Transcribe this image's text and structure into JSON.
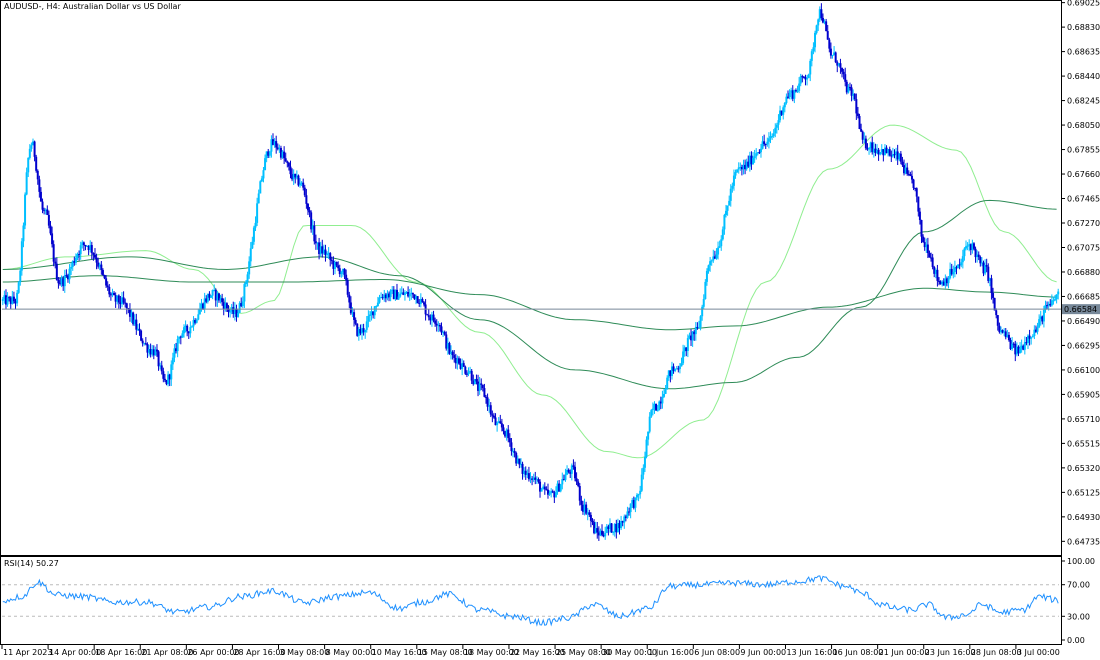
{
  "window": {
    "symbol_title": "AUDUSD-, H4:  Australian Dollar vs US Dollar"
  },
  "indicator": {
    "title": "RSI(14) 50.27",
    "levels": [
      100,
      70,
      30,
      0
    ],
    "level_labels": [
      "100.00",
      "70.00",
      "30.00",
      "0.00"
    ]
  },
  "price_axis": {
    "ticks": [
      "0.69025",
      "0.68830",
      "0.68635",
      "0.68440",
      "0.68245",
      "0.68050",
      "0.67855",
      "0.67660",
      "0.67465",
      "0.67270",
      "0.67075",
      "0.66880",
      "0.66685",
      "0.66490",
      "0.66295",
      "0.66100",
      "0.65905",
      "0.65710",
      "0.65515",
      "0.65320",
      "0.65125",
      "0.64930",
      "0.64735"
    ],
    "current_price": "0.66584"
  },
  "time_axis": {
    "ticks": [
      "11 Apr 2023",
      "14 Apr 00:00",
      "18 Apr 16:00",
      "21 Apr 08:00",
      "26 Apr 00:00",
      "28 Apr 16:00",
      "3 May 08:00",
      "8 May 00:00",
      "10 May 16:00",
      "15 May 08:00",
      "18 May 00:00",
      "22 May 16:00",
      "25 May 08:00",
      "30 May 00:00",
      "1 Jun 16:00",
      "6 Jun 08:00",
      "9 Jun 00:00",
      "13 Jun 16:00",
      "16 Jun 08:00",
      "21 Jun 00:00",
      "23 Jun 16:00",
      "28 Jun 08:00",
      "3 Jul 00:00"
    ]
  },
  "colors": {
    "bull": "#00bfff",
    "bear": "#0000cd",
    "ma_fast": "#90ee90",
    "ma_slow": "#2e8b57",
    "rsi": "#1e90ff",
    "price_line": "#778899"
  },
  "chart_data": {
    "type": "candlestick",
    "symbol": "AUDUSD-",
    "timeframe": "H4",
    "ylim": [
      0.6465,
      0.6903
    ],
    "close_path_anchors": [
      [
        0,
        0.6665
      ],
      [
        8,
        0.6665
      ],
      [
        18,
        0.679
      ],
      [
        26,
        0.6735
      ],
      [
        36,
        0.668
      ],
      [
        52,
        0.671
      ],
      [
        72,
        0.6665
      ],
      [
        95,
        0.6625
      ],
      [
        102,
        0.66
      ],
      [
        113,
        0.664
      ],
      [
        132,
        0.667
      ],
      [
        146,
        0.6655
      ],
      [
        170,
        0.679
      ],
      [
        186,
        0.676
      ],
      [
        200,
        0.6705
      ],
      [
        212,
        0.669
      ],
      [
        224,
        0.664
      ],
      [
        240,
        0.667
      ],
      [
        258,
        0.667
      ],
      [
        272,
        0.665
      ],
      [
        284,
        0.662
      ],
      [
        292,
        0.661
      ],
      [
        300,
        0.6595
      ],
      [
        312,
        0.6565
      ],
      [
        330,
        0.6527
      ],
      [
        344,
        0.651
      ],
      [
        358,
        0.653
      ],
      [
        366,
        0.65
      ],
      [
        374,
        0.648
      ],
      [
        386,
        0.6485
      ],
      [
        398,
        0.6505
      ],
      [
        410,
        0.658
      ],
      [
        422,
        0.661
      ],
      [
        436,
        0.664
      ],
      [
        446,
        0.67
      ],
      [
        464,
        0.677
      ],
      [
        480,
        0.679
      ],
      [
        496,
        0.683
      ],
      [
        506,
        0.6845
      ],
      [
        514,
        0.6895
      ],
      [
        522,
        0.686
      ],
      [
        534,
        0.683
      ],
      [
        542,
        0.679
      ],
      [
        552,
        0.6785
      ],
      [
        562,
        0.678
      ],
      [
        572,
        0.676
      ],
      [
        580,
        0.671
      ],
      [
        590,
        0.668
      ],
      [
        600,
        0.669
      ],
      [
        608,
        0.671
      ],
      [
        618,
        0.669
      ],
      [
        628,
        0.664
      ],
      [
        638,
        0.6625
      ],
      [
        648,
        0.664
      ],
      [
        658,
        0.666
      ],
      [
        664,
        0.667
      ]
    ],
    "sma_fast_anchors": [
      [
        0,
        0.669
      ],
      [
        40,
        0.67
      ],
      [
        90,
        0.6705
      ],
      [
        120,
        0.669
      ],
      [
        150,
        0.6655
      ],
      [
        170,
        0.6665
      ],
      [
        190,
        0.6725
      ],
      [
        220,
        0.6725
      ],
      [
        260,
        0.668
      ],
      [
        300,
        0.664
      ],
      [
        340,
        0.659
      ],
      [
        380,
        0.6545
      ],
      [
        400,
        0.654
      ],
      [
        440,
        0.657
      ],
      [
        480,
        0.668
      ],
      [
        520,
        0.677
      ],
      [
        560,
        0.6805
      ],
      [
        600,
        0.6785
      ],
      [
        630,
        0.672
      ],
      [
        664,
        0.668
      ]
    ],
    "sma_slow_anchors": [
      [
        0,
        0.668
      ],
      [
        60,
        0.6685
      ],
      [
        120,
        0.668
      ],
      [
        180,
        0.668
      ],
      [
        240,
        0.6682
      ],
      [
        300,
        0.667
      ],
      [
        360,
        0.665
      ],
      [
        420,
        0.6642
      ],
      [
        460,
        0.6645
      ],
      [
        520,
        0.666
      ],
      [
        580,
        0.6675
      ],
      [
        620,
        0.6672
      ],
      [
        664,
        0.6668
      ]
    ],
    "sma_long_anchors": [
      [
        0,
        0.669
      ],
      [
        80,
        0.67
      ],
      [
        140,
        0.669
      ],
      [
        200,
        0.67
      ],
      [
        250,
        0.6685
      ],
      [
        300,
        0.665
      ],
      [
        360,
        0.661
      ],
      [
        420,
        0.6595
      ],
      [
        460,
        0.66
      ],
      [
        500,
        0.662
      ],
      [
        540,
        0.666
      ],
      [
        580,
        0.672
      ],
      [
        620,
        0.6745
      ],
      [
        664,
        0.6738
      ]
    ],
    "rsi_anchors": [
      [
        0,
        50
      ],
      [
        12,
        55
      ],
      [
        22,
        73
      ],
      [
        34,
        57
      ],
      [
        50,
        55
      ],
      [
        70,
        48
      ],
      [
        90,
        48
      ],
      [
        110,
        35
      ],
      [
        130,
        42
      ],
      [
        150,
        55
      ],
      [
        170,
        62
      ],
      [
        190,
        47
      ],
      [
        210,
        55
      ],
      [
        230,
        60
      ],
      [
        250,
        40
      ],
      [
        264,
        48
      ],
      [
        280,
        58
      ],
      [
        300,
        38
      ],
      [
        320,
        30
      ],
      [
        340,
        22
      ],
      [
        356,
        28
      ],
      [
        372,
        45
      ],
      [
        388,
        30
      ],
      [
        406,
        40
      ],
      [
        420,
        68
      ],
      [
        440,
        70
      ],
      [
        460,
        72
      ],
      [
        480,
        70
      ],
      [
        500,
        74
      ],
      [
        514,
        78
      ],
      [
        530,
        68
      ],
      [
        542,
        58
      ],
      [
        552,
        45
      ],
      [
        562,
        40
      ],
      [
        572,
        38
      ],
      [
        582,
        45
      ],
      [
        594,
        28
      ],
      [
        606,
        32
      ],
      [
        616,
        45
      ],
      [
        628,
        35
      ],
      [
        642,
        38
      ],
      [
        652,
        55
      ],
      [
        664,
        50
      ]
    ]
  }
}
